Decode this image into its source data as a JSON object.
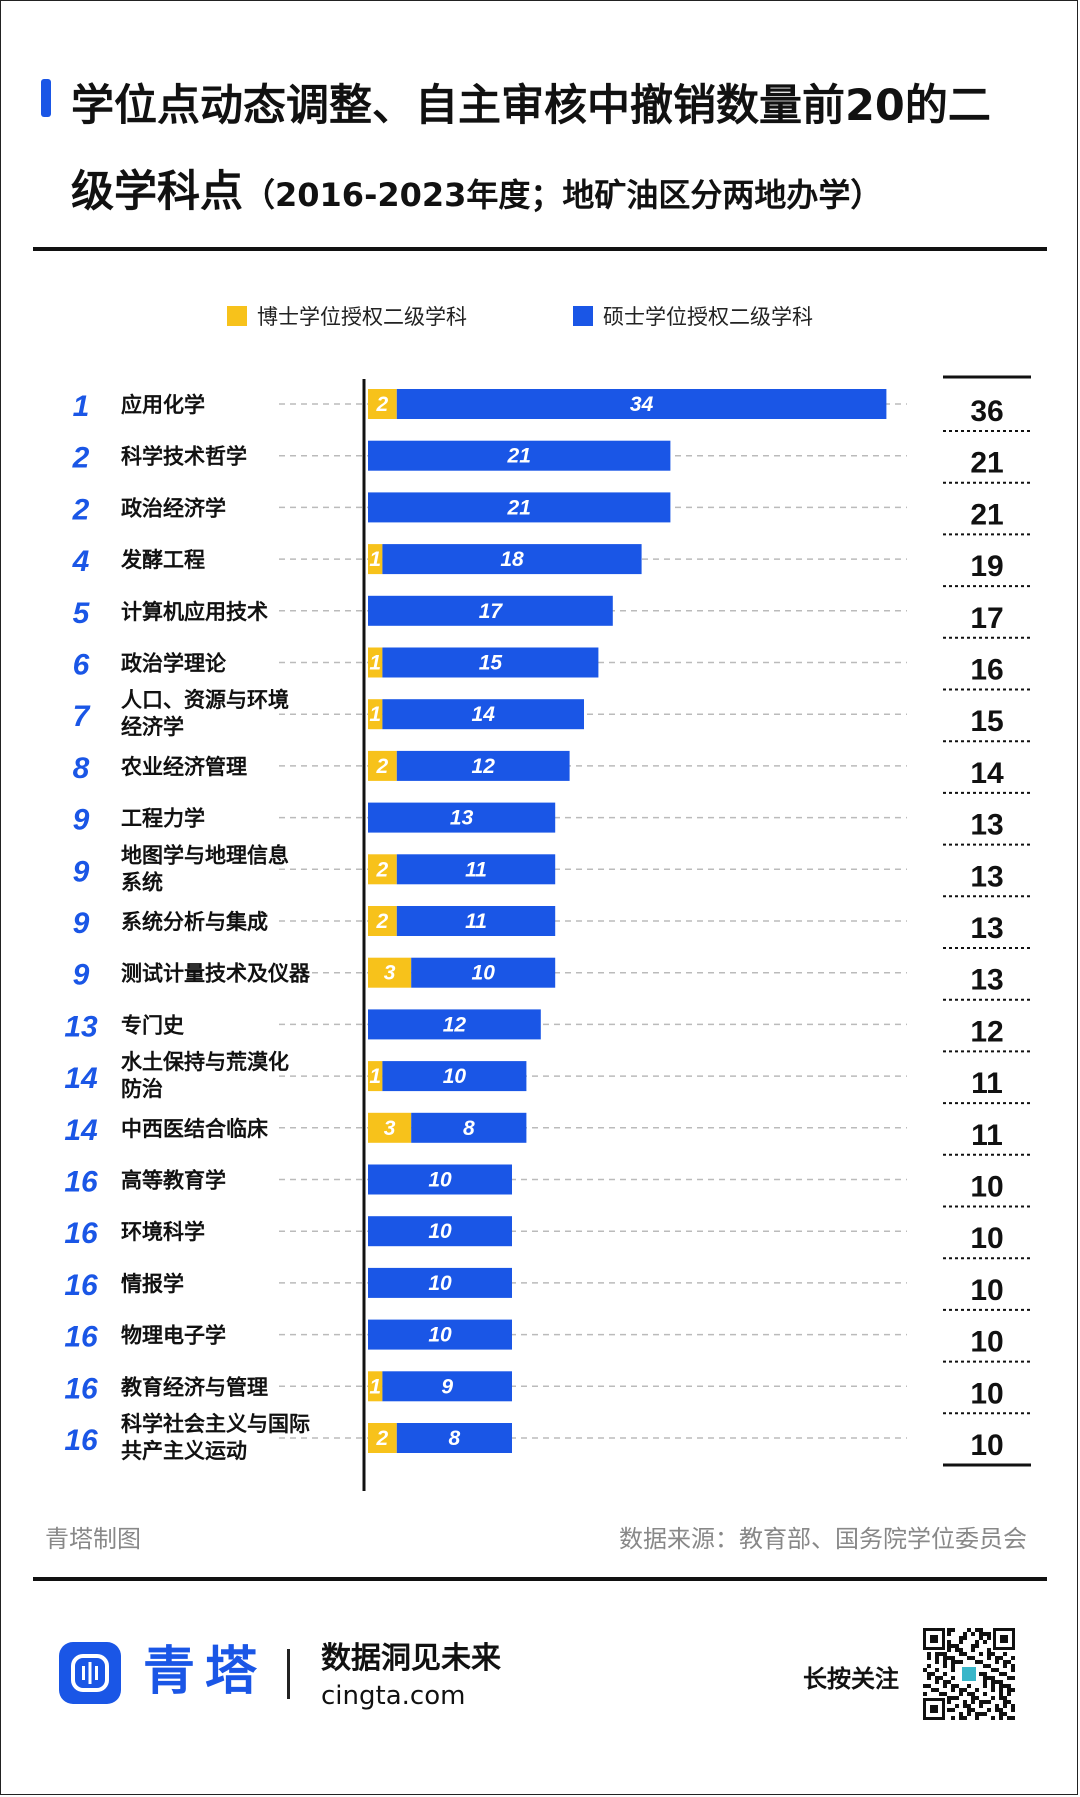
{
  "title": {
    "main": "学位点动态调整、自主审核中撤销数量前20的二级学科点",
    "subtitle": "（2016-2023年度；地矿油区分两地办学）"
  },
  "legend": {
    "doctoral": "博士学位授权二级学科",
    "master": "硕士学位授权二级学科"
  },
  "colors": {
    "doctoral": "#f7c21b",
    "master": "#1a56e6",
    "accent": "#1a56e6"
  },
  "chart_data": {
    "type": "bar",
    "orientation": "horizontal",
    "stacked": true,
    "legend_position": "top",
    "categories": [
      {
        "rank": "1",
        "label": [
          "应用化学"
        ]
      },
      {
        "rank": "2",
        "label": [
          "科学技术哲学"
        ]
      },
      {
        "rank": "2",
        "label": [
          "政治经济学"
        ]
      },
      {
        "rank": "4",
        "label": [
          "发酵工程"
        ]
      },
      {
        "rank": "5",
        "label": [
          "计算机应用技术"
        ]
      },
      {
        "rank": "6",
        "label": [
          "政治学理论"
        ]
      },
      {
        "rank": "7",
        "label": [
          "人口、资源与环境",
          "经济学"
        ]
      },
      {
        "rank": "8",
        "label": [
          "农业经济管理"
        ]
      },
      {
        "rank": "9",
        "label": [
          "工程力学"
        ]
      },
      {
        "rank": "9",
        "label": [
          "地图学与地理信息",
          "系统"
        ]
      },
      {
        "rank": "9",
        "label": [
          "系统分析与集成"
        ]
      },
      {
        "rank": "9",
        "label": [
          "测试计量技术及仪器"
        ]
      },
      {
        "rank": "13",
        "label": [
          "专门史"
        ]
      },
      {
        "rank": "14",
        "label": [
          "水土保持与荒漠化",
          "防治"
        ]
      },
      {
        "rank": "14",
        "label": [
          "中西医结合临床"
        ]
      },
      {
        "rank": "16",
        "label": [
          "高等教育学"
        ]
      },
      {
        "rank": "16",
        "label": [
          "环境科学"
        ]
      },
      {
        "rank": "16",
        "label": [
          "情报学"
        ]
      },
      {
        "rank": "16",
        "label": [
          "物理电子学"
        ]
      },
      {
        "rank": "16",
        "label": [
          "教育经济与管理"
        ]
      },
      {
        "rank": "16",
        "label": [
          "科学社会主义与国际",
          "共产主义运动"
        ]
      }
    ],
    "series": [
      {
        "name": "博士学位授权二级学科",
        "values": [
          2,
          0,
          0,
          1,
          0,
          1,
          1,
          2,
          0,
          2,
          2,
          3,
          0,
          1,
          3,
          0,
          0,
          0,
          0,
          1,
          2
        ]
      },
      {
        "name": "硕士学位授权二级学科",
        "values": [
          34,
          21,
          21,
          18,
          17,
          15,
          14,
          12,
          13,
          11,
          11,
          10,
          12,
          10,
          8,
          10,
          10,
          10,
          10,
          9,
          8
        ]
      }
    ],
    "totals": [
      36,
      21,
      21,
      19,
      17,
      16,
      15,
      14,
      13,
      13,
      13,
      13,
      12,
      11,
      11,
      10,
      10,
      10,
      10,
      10,
      10
    ],
    "xlim": [
      0,
      36
    ]
  },
  "footer": {
    "credit": "青塔制图",
    "source": "数据来源：教育部、国务院学位委员会"
  },
  "brand": {
    "name": "青塔",
    "slogan": "数据洞见未来",
    "domain": "cingta.com",
    "follow": "长按关注",
    "icons": {
      "logo": "cingta-logo-icon",
      "qr": "qr-code-icon"
    }
  }
}
